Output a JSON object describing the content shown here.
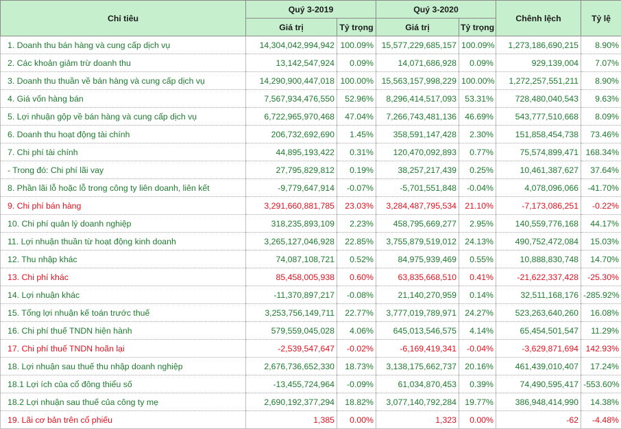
{
  "header": {
    "chi_tieu": "Chỉ tiêu",
    "q2019": "Quý 3-2019",
    "q2020": "Quý 3-2020",
    "chenh_lech": "Chênh lệch",
    "ty_le": "Tỷ lệ",
    "gia_tri": "Giá trị",
    "ty_trong": "Tỷ trọng"
  },
  "rows": [
    {
      "label": "1. Doanh thu bán hàng và cung cấp dịch vụ",
      "v2019": "14,304,042,994,942",
      "p2019": "100.09%",
      "v2020": "15,577,229,685,157",
      "p2020": "100.09%",
      "diff": "1,273,186,690,215",
      "rate": "8.90%",
      "red": false
    },
    {
      "label": "2. Các khoản giảm trừ doanh thu",
      "v2019": "13,142,547,924",
      "p2019": "0.09%",
      "v2020": "14,071,686,928",
      "p2020": "0.09%",
      "diff": "929,139,004",
      "rate": "7.07%",
      "red": false
    },
    {
      "label": "3. Doanh thu thuần về bán hàng và cung cấp dịch vụ",
      "v2019": "14,290,900,447,018",
      "p2019": "100.00%",
      "v2020": "15,563,157,998,229",
      "p2020": "100.00%",
      "diff": "1,272,257,551,211",
      "rate": "8.90%",
      "red": false
    },
    {
      "label": "4. Giá vốn hàng bán",
      "v2019": "7,567,934,476,550",
      "p2019": "52.96%",
      "v2020": "8,296,414,517,093",
      "p2020": "53.31%",
      "diff": "728,480,040,543",
      "rate": "9.63%",
      "red": false
    },
    {
      "label": "5. Lợi nhuận gộp về bán hàng và cung cấp dịch vụ",
      "v2019": "6,722,965,970,468",
      "p2019": "47.04%",
      "v2020": "7,266,743,481,136",
      "p2020": "46.69%",
      "diff": "543,777,510,668",
      "rate": "8.09%",
      "red": false
    },
    {
      "label": "6. Doanh thu hoạt động tài chính",
      "v2019": "206,732,692,690",
      "p2019": "1.45%",
      "v2020": "358,591,147,428",
      "p2020": "2.30%",
      "diff": "151,858,454,738",
      "rate": "73.46%",
      "red": false
    },
    {
      "label": "7. Chi phí tài chính",
      "v2019": "44,895,193,422",
      "p2019": "0.31%",
      "v2020": "120,470,092,893",
      "p2020": "0.77%",
      "diff": "75,574,899,471",
      "rate": "168.34%",
      "red": false
    },
    {
      "label": "- Trong đó: Chi phí lãi vay",
      "v2019": "27,795,829,812",
      "p2019": "0.19%",
      "v2020": "38,257,217,439",
      "p2020": "0.25%",
      "diff": "10,461,387,627",
      "rate": "37.64%",
      "red": false
    },
    {
      "label": "8. Phần lãi lỗ hoặc lỗ trong công ty liên doanh, liên kết",
      "v2019": "-9,779,647,914",
      "p2019": "-0.07%",
      "v2020": "-5,701,551,848",
      "p2020": "-0.04%",
      "diff": "4,078,096,066",
      "rate": "-41.70%",
      "red": false
    },
    {
      "label": "9. Chi phí bán hàng",
      "v2019": "3,291,660,881,785",
      "p2019": "23.03%",
      "v2020": "3,284,487,795,534",
      "p2020": "21.10%",
      "diff": "-7,173,086,251",
      "rate": "-0.22%",
      "red": true
    },
    {
      "label": "10. Chi phí quản lý doanh nghiệp",
      "v2019": "318,235,893,109",
      "p2019": "2.23%",
      "v2020": "458,795,669,277",
      "p2020": "2.95%",
      "diff": "140,559,776,168",
      "rate": "44.17%",
      "red": false
    },
    {
      "label": "11. Lợi nhuận thuần từ hoạt động kinh doanh",
      "v2019": "3,265,127,046,928",
      "p2019": "22.85%",
      "v2020": "3,755,879,519,012",
      "p2020": "24.13%",
      "diff": "490,752,472,084",
      "rate": "15.03%",
      "red": false
    },
    {
      "label": "12. Thu nhập khác",
      "v2019": "74,087,108,721",
      "p2019": "0.52%",
      "v2020": "84,975,939,469",
      "p2020": "0.55%",
      "diff": "10,888,830,748",
      "rate": "14.70%",
      "red": false
    },
    {
      "label": "13. Chi phí khác",
      "v2019": "85,458,005,938",
      "p2019": "0.60%",
      "v2020": "63,835,668,510",
      "p2020": "0.41%",
      "diff": "-21,622,337,428",
      "rate": "-25.30%",
      "red": true
    },
    {
      "label": "14. Lợi nhuận khác",
      "v2019": "-11,370,897,217",
      "p2019": "-0.08%",
      "v2020": "21,140,270,959",
      "p2020": "0.14%",
      "diff": "32,511,168,176",
      "rate": "-285.92%",
      "red": false
    },
    {
      "label": "15. Tổng lợi nhuận kế toán trước thuế",
      "v2019": "3,253,756,149,711",
      "p2019": "22.77%",
      "v2020": "3,777,019,789,971",
      "p2020": "24.27%",
      "diff": "523,263,640,260",
      "rate": "16.08%",
      "red": false
    },
    {
      "label": "16. Chi phí thuế TNDN hiện hành",
      "v2019": "579,559,045,028",
      "p2019": "4.06%",
      "v2020": "645,013,546,575",
      "p2020": "4.14%",
      "diff": "65,454,501,547",
      "rate": "11.29%",
      "red": false
    },
    {
      "label": "17. Chi phí thuế TNDN hoãn lại",
      "v2019": "-2,539,547,647",
      "p2019": "-0.02%",
      "v2020": "-6,169,419,341",
      "p2020": "-0.04%",
      "diff": "-3,629,871,694",
      "rate": "142.93%",
      "red": true
    },
    {
      "label": "18. Lợi nhuận sau thuế thu nhập doanh nghiệp",
      "v2019": "2,676,736,652,330",
      "p2019": "18.73%",
      "v2020": "3,138,175,662,737",
      "p2020": "20.16%",
      "diff": "461,439,010,407",
      "rate": "17.24%",
      "red": false
    },
    {
      "label": "18.1 Lợi ích của cổ đông thiểu số",
      "v2019": "-13,455,724,964",
      "p2019": "-0.09%",
      "v2020": "61,034,870,453",
      "p2020": "0.39%",
      "diff": "74,490,595,417",
      "rate": "-553.60%",
      "red": false
    },
    {
      "label": "18.2 Lợi nhuận sau thuế của công ty mẹ",
      "v2019": "2,690,192,377,294",
      "p2019": "18.82%",
      "v2020": "3,077,140,792,284",
      "p2020": "19.77%",
      "diff": "386,948,414,990",
      "rate": "14.38%",
      "red": false
    },
    {
      "label": "19. Lãi cơ bản trên cổ phiếu",
      "v2019": "1,385",
      "p2019": "0.00%",
      "v2020": "1,323",
      "p2020": "0.00%",
      "diff": "-62",
      "rate": "-4.48%",
      "red": true
    }
  ],
  "colors": {
    "header_bg": "#c6efce",
    "positive_text": "#1d7a2e",
    "negative_text": "#e0101e"
  }
}
